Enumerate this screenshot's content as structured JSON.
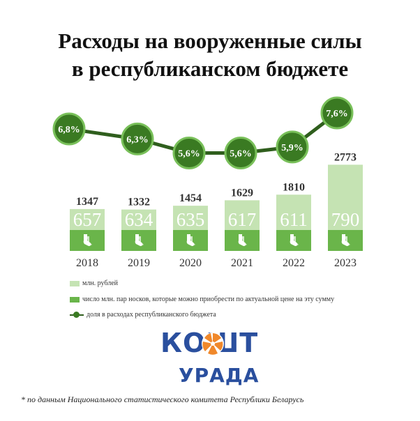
{
  "title_line1": "Расходы на вооруженные силы",
  "title_line2": "в республиканском бюджете",
  "colors": {
    "bar_light": "#c5e3b3",
    "bar_dark": "#6ab54a",
    "line": "#2f5e1d",
    "marker_fill": "#3a7a22",
    "marker_ring": "#79c05a"
  },
  "chart_data": {
    "type": "bar",
    "categories": [
      "2018",
      "2019",
      "2020",
      "2021",
      "2022",
      "2023"
    ],
    "series": [
      {
        "name": "млн. рублей",
        "values": [
          1347,
          1332,
          1454,
          1629,
          1810,
          2773
        ]
      },
      {
        "name": "число млн. пар носков, которые можно приобрести по актуальной цене на эту сумму",
        "values": [
          657,
          634,
          635,
          617,
          611,
          790
        ]
      },
      {
        "name": "доля в расходах республиканского бюджета",
        "values": [
          6.8,
          6.3,
          5.6,
          5.6,
          5.9,
          7.6
        ],
        "labels": [
          "6,8%",
          "6,3%",
          "5,6%",
          "5,6%",
          "5,9%",
          "7,6%"
        ],
        "type": "line"
      }
    ],
    "total_labels": [
      "1347",
      "1332",
      "1454",
      "1629",
      "1810",
      "2773"
    ],
    "socks_labels": [
      "657",
      "634",
      "635",
      "617",
      "611",
      "790"
    ],
    "legend_position": "bottom-left",
    "grid": false,
    "sock_icon": "sock-icon"
  },
  "legend": {
    "item1": "млн. рублей",
    "item2": "число млн. пар носков, которые можно приобрести по актуальной цене на эту сумму",
    "item3": "доля в расходах республиканского бюджета"
  },
  "logo": {
    "top": "КОШТ",
    "bottom": "УРАДА"
  },
  "footnote": "* по данным Национального статистического комитета Республики Беларусь"
}
